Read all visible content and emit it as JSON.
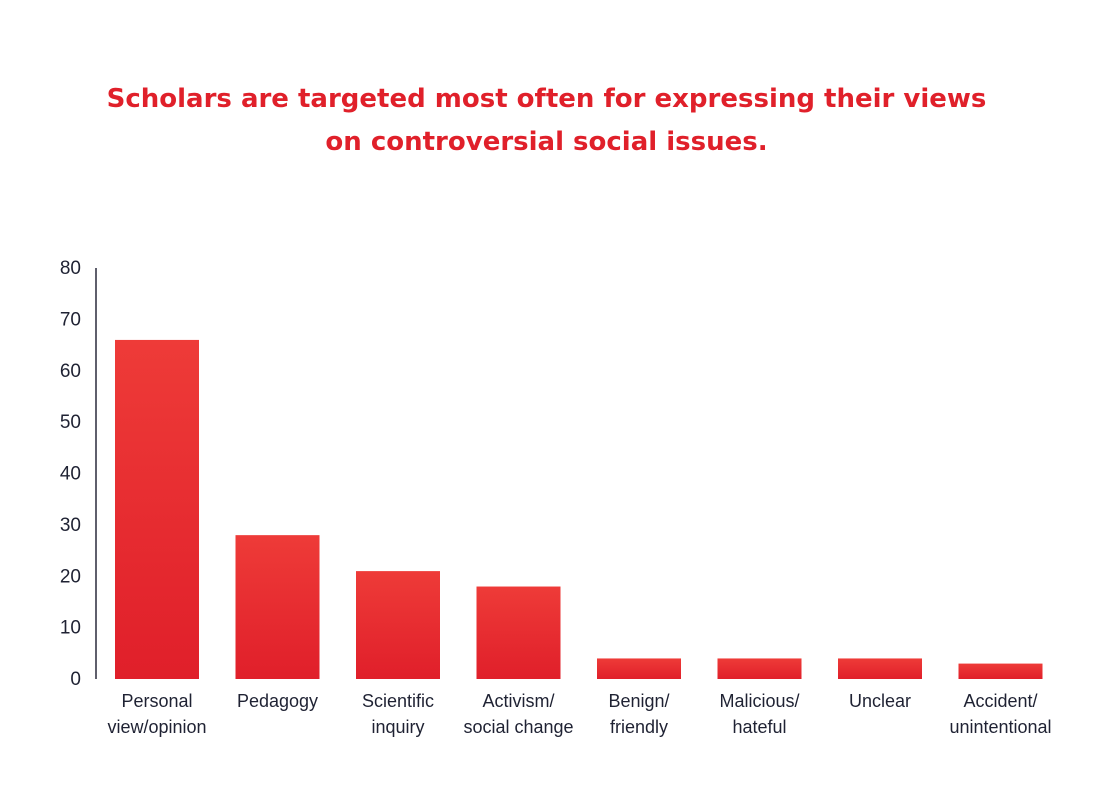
{
  "title_lines": [
    "Scholars are targeted most often for expressing their views",
    "on controversial social issues."
  ],
  "colors": {
    "title": "#e0202a",
    "bar_top": "#ee3b38",
    "bar_bottom": "#e01f2a",
    "axis": "#2a2a3c",
    "tick_text": "#1f2233"
  },
  "chart_data": {
    "type": "bar",
    "title": "Scholars are targeted most often for expressing their views on controversial social issues.",
    "categories": [
      [
        "Personal",
        "view/opinion"
      ],
      [
        "Pedagogy"
      ],
      [
        "Scientific",
        "inquiry"
      ],
      [
        "Activism/",
        "social change"
      ],
      [
        "Benign/",
        "friendly"
      ],
      [
        "Malicious/",
        "hateful"
      ],
      [
        "Unclear"
      ],
      [
        "Accident/",
        "unintentional"
      ]
    ],
    "values": [
      66,
      28,
      21,
      18,
      4,
      4,
      4,
      3
    ],
    "ylim": [
      0,
      80
    ],
    "yticks": [
      0,
      10,
      20,
      30,
      40,
      50,
      60,
      70,
      80
    ],
    "xlabel": "",
    "ylabel": "",
    "grid": false,
    "legend": "none"
  }
}
